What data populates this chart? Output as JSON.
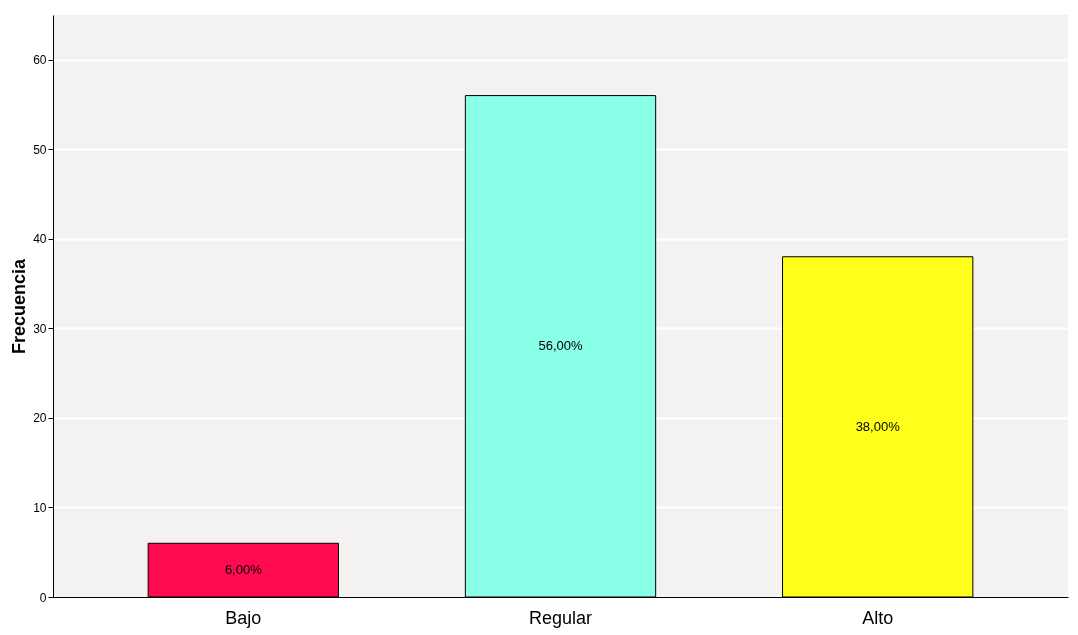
{
  "chart_data": {
    "type": "bar",
    "ylabel": "Frecuencia",
    "categories": [
      "Bajo",
      "Regular",
      "Alto"
    ],
    "values": [
      6,
      56,
      38
    ],
    "colors": [
      "#ff0a50",
      "#88ffe6",
      "#ffff1a"
    ],
    "value_labels": [
      "6,00%",
      "56,00%",
      "38,00%"
    ],
    "ylim": [
      0,
      65
    ],
    "yticks": [
      0,
      10,
      20,
      30,
      40,
      50,
      60
    ],
    "grid": "y"
  }
}
